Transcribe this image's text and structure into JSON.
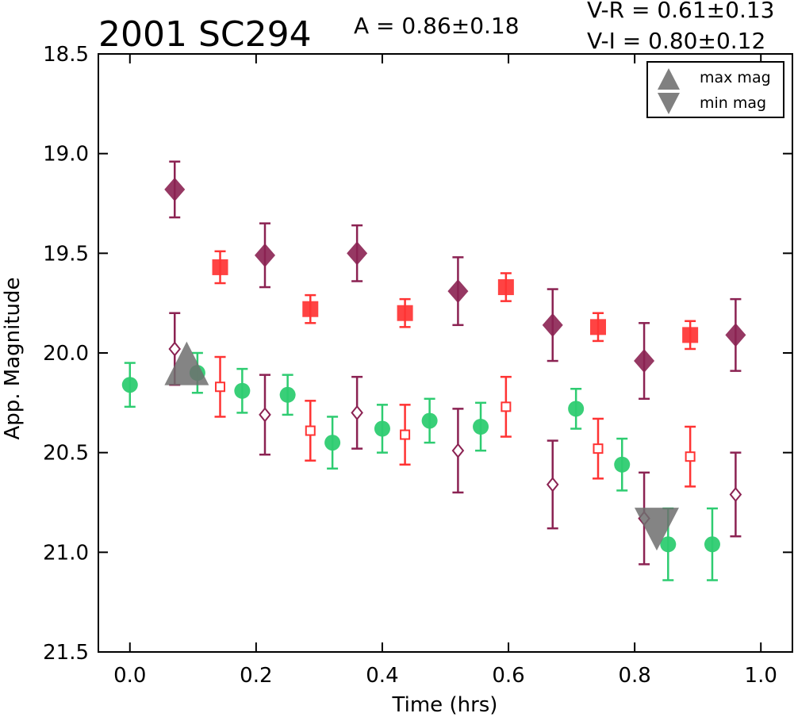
{
  "title": "2001 SC294",
  "amplitude_text": "A  = 0.86±0.18",
  "color_text_1": "V-R = 0.61±0.13",
  "color_text_2": "V-I  = 0.80±0.12",
  "legend": {
    "max_label": "max mag",
    "min_label": "min mag"
  },
  "chart_data": {
    "type": "scatter",
    "title": "2001 SC294",
    "xlabel": "Time (hrs)",
    "ylabel": "App. Magnitude",
    "xlim": [
      -0.05,
      1.05
    ],
    "ylim": [
      21.5,
      18.5
    ],
    "y_inverted": true,
    "grid": false,
    "legend_position": "top-right",
    "x_ticks": [
      "0.0",
      "0.2",
      "0.4",
      "0.6",
      "0.8",
      "1.0"
    ],
    "y_ticks": [
      "18.5",
      "19.0",
      "19.5",
      "20.0",
      "20.5",
      "21.0",
      "21.5"
    ],
    "series": [
      {
        "marker": "circle",
        "color": "#2ecc71",
        "filled": true,
        "x": [
          0.0,
          0.107,
          0.178,
          0.25,
          0.321,
          0.4,
          0.475,
          0.556,
          0.707,
          0.78,
          0.853,
          0.923
        ],
        "y": [
          20.16,
          20.1,
          20.19,
          20.21,
          20.45,
          20.38,
          20.34,
          20.37,
          20.28,
          20.56,
          20.96,
          20.96
        ],
        "err": [
          0.11,
          0.1,
          0.11,
          0.1,
          0.13,
          0.12,
          0.11,
          0.12,
          0.1,
          0.13,
          0.18,
          0.18
        ]
      },
      {
        "marker": "square",
        "color": "#ff3333",
        "filled": true,
        "x": [
          0.143,
          0.286,
          0.436,
          0.596,
          0.742,
          0.888
        ],
        "y": [
          19.57,
          19.78,
          19.8,
          19.67,
          19.87,
          19.91
        ],
        "err": [
          0.08,
          0.07,
          0.07,
          0.07,
          0.07,
          0.07
        ]
      },
      {
        "marker": "square",
        "color": "#ff3333",
        "filled": false,
        "x": [
          0.143,
          0.286,
          0.436,
          0.596,
          0.742,
          0.888
        ],
        "y": [
          20.17,
          20.39,
          20.41,
          20.27,
          20.48,
          20.52
        ],
        "err": [
          0.15,
          0.15,
          0.15,
          0.15,
          0.15,
          0.15
        ]
      },
      {
        "marker": "diamond",
        "color": "#8b2252",
        "filled": true,
        "x": [
          0.071,
          0.214,
          0.36,
          0.52,
          0.67,
          0.815,
          0.96
        ],
        "y": [
          19.18,
          19.51,
          19.5,
          19.69,
          19.86,
          20.04,
          19.91
        ],
        "err": [
          0.14,
          0.16,
          0.14,
          0.17,
          0.18,
          0.19,
          0.18
        ]
      },
      {
        "marker": "diamond",
        "color": "#8b2252",
        "filled": false,
        "x": [
          0.071,
          0.214,
          0.36,
          0.52,
          0.67,
          0.815,
          0.96
        ],
        "y": [
          19.98,
          20.31,
          20.3,
          20.49,
          20.66,
          20.83,
          20.71
        ],
        "err": [
          0.18,
          0.2,
          0.18,
          0.21,
          0.22,
          0.23,
          0.21
        ]
      }
    ],
    "extrema": [
      {
        "kind": "max",
        "x": 0.09,
        "y": 20.05
      },
      {
        "kind": "min",
        "x": 0.835,
        "y": 20.88
      }
    ]
  }
}
